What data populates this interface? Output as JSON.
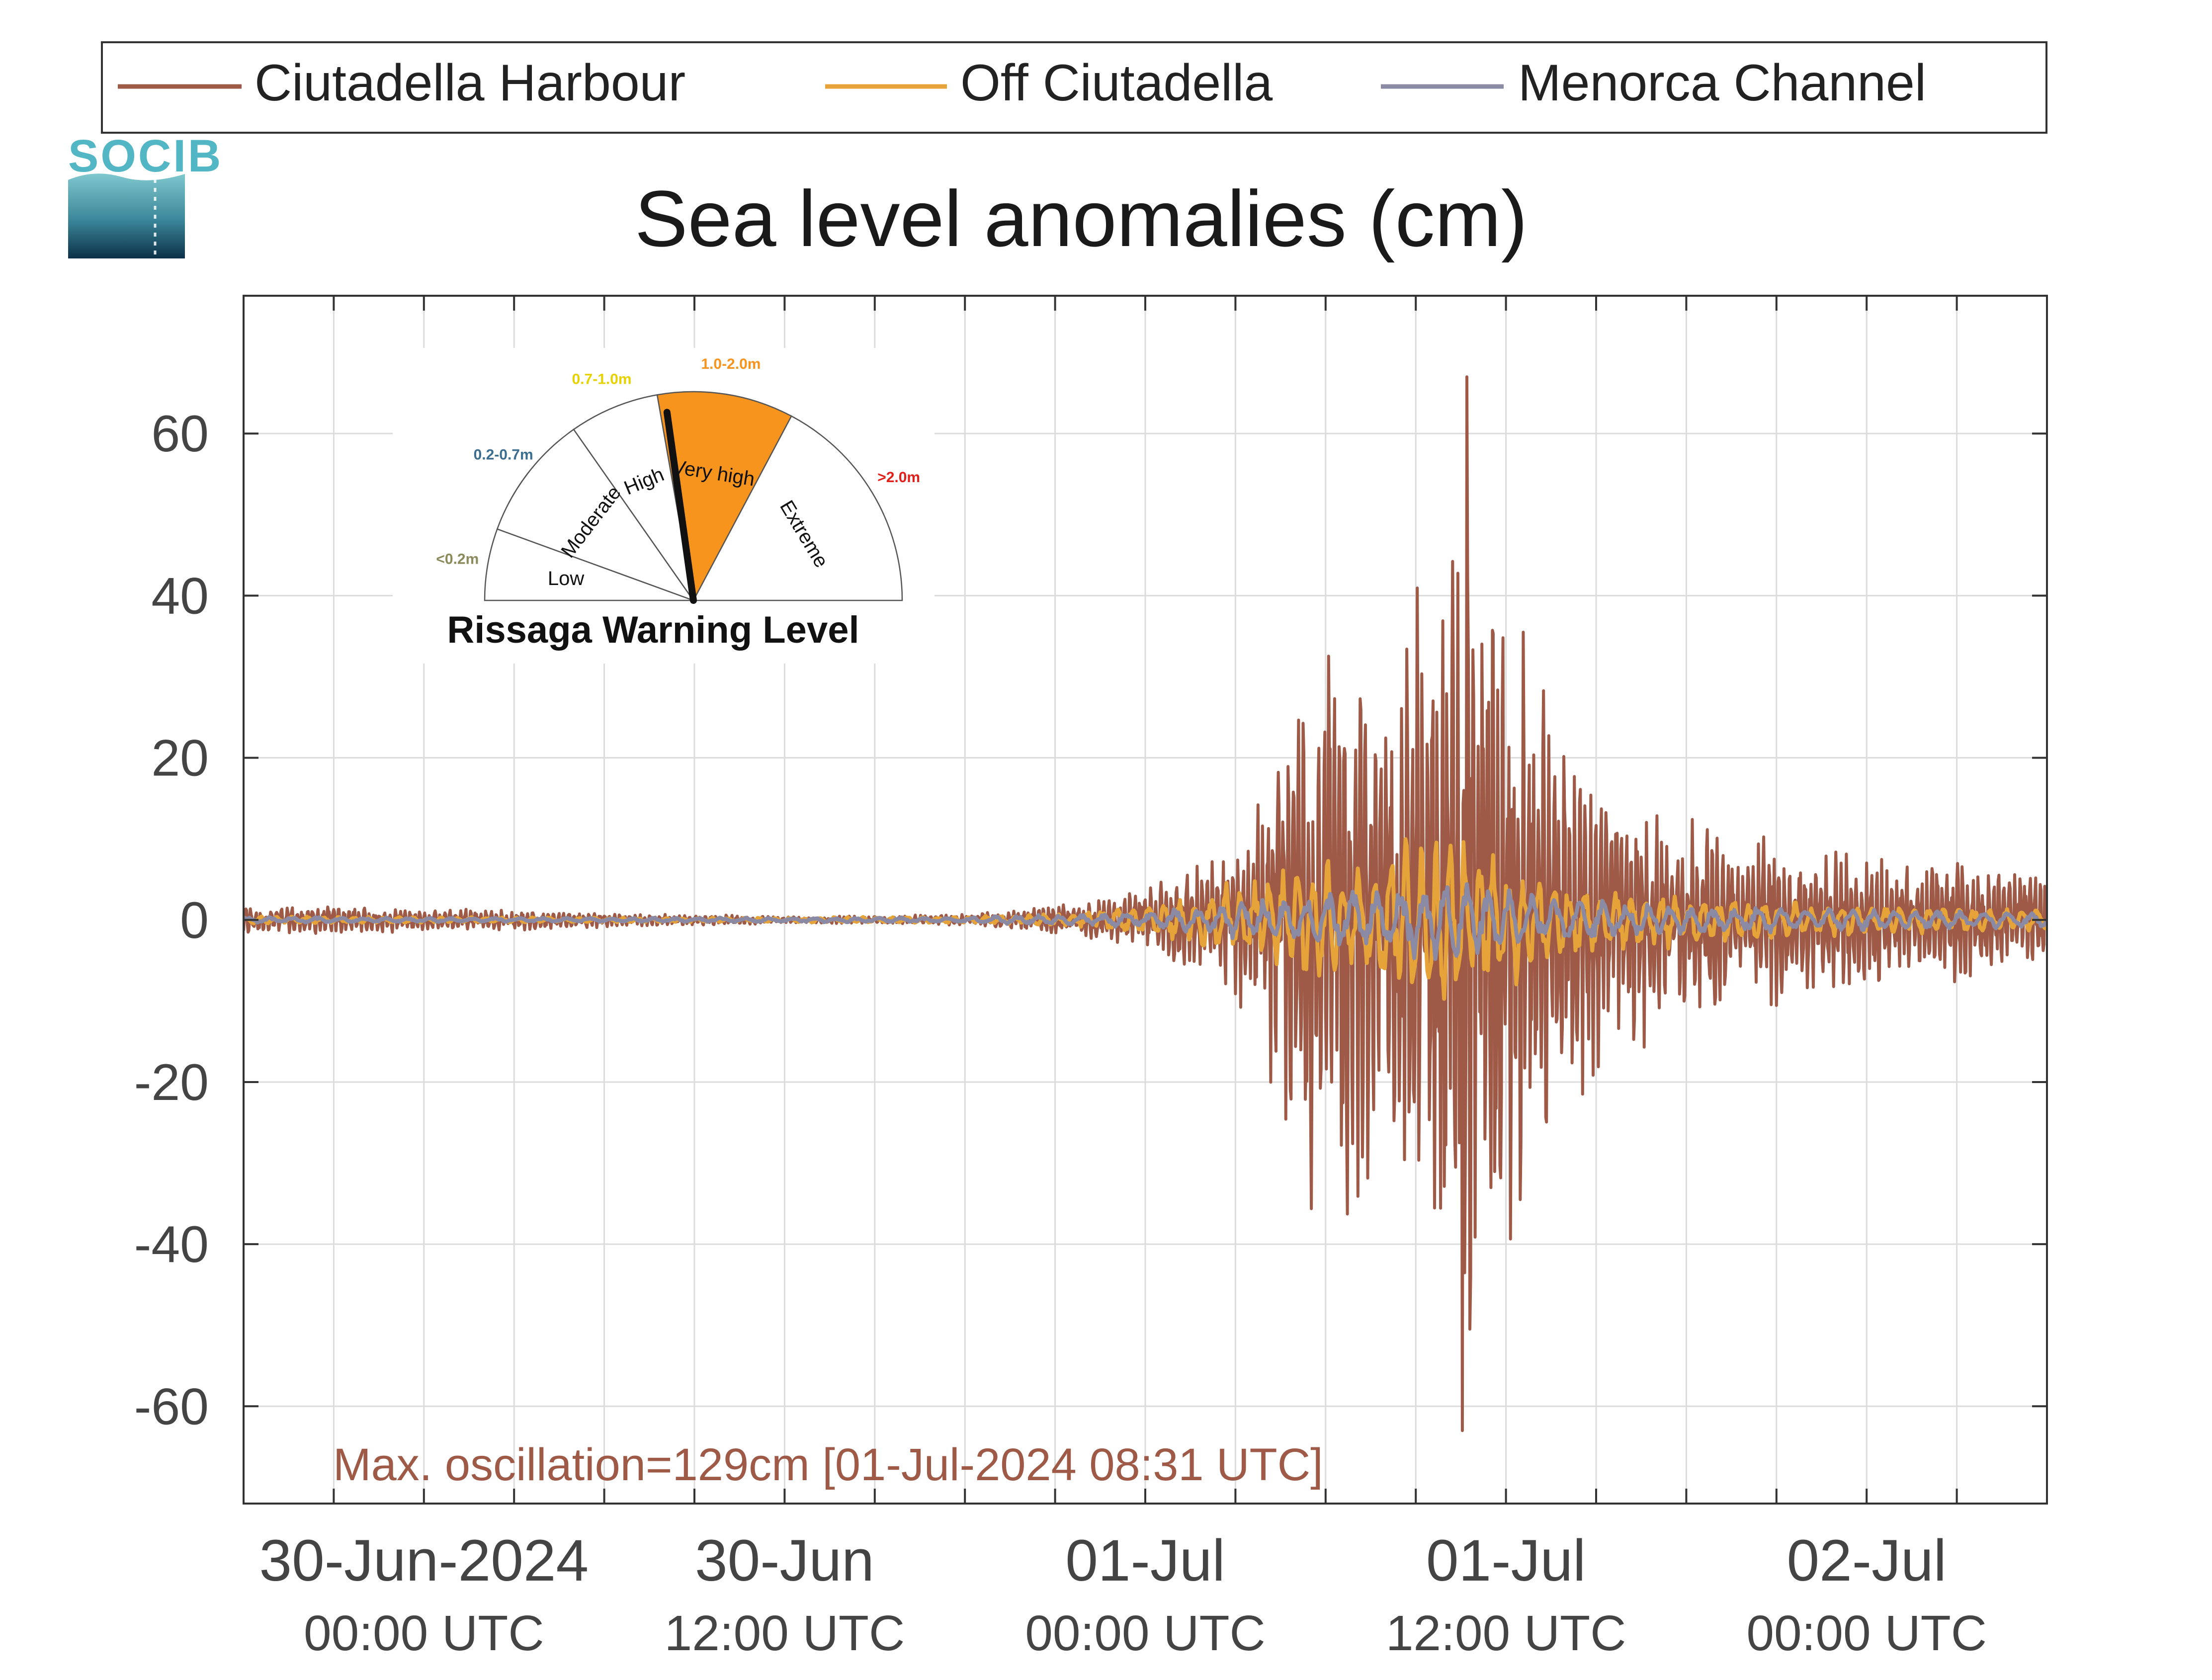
{
  "logo": {
    "text": "SOCIB"
  },
  "colors": {
    "harbour": "#9E5A47",
    "off": "#E5A33A",
    "channel": "#8A8AA5",
    "grid": "#dcdcdc",
    "axis": "#333333",
    "gauge_orange": "#F7941D",
    "gauge_pointer": "#111111"
  },
  "warning_gauge": {
    "title": "Rissaga Warning Level",
    "level": "Very high",
    "sectors": [
      {
        "name": "Low",
        "range": "<0.2m",
        "range_color": "#8A8A5C"
      },
      {
        "name": "Moderate",
        "range": "0.2-0.7m",
        "range_color": "#3C6E8F"
      },
      {
        "name": "High",
        "range": "0.7-1.0m",
        "range_color": "#E6D200"
      },
      {
        "name": "Very high",
        "range": "1.0-2.0m",
        "range_color": "#F7941D"
      },
      {
        "name": "Extreme",
        "range": ">2.0m",
        "range_color": "#E0201B"
      }
    ]
  },
  "chart_data": {
    "type": "line",
    "title": "Sea level anomalies (cm)",
    "xlabel": "",
    "ylabel": "",
    "ylim": [
      -72,
      77
    ],
    "yticks": [
      -60,
      -40,
      -20,
      0,
      20,
      40,
      60
    ],
    "xlim_hours": [
      -6,
      54
    ],
    "x_ticks": [
      {
        "hour": 0,
        "label": "30-Jun-2024",
        "sublabel": "00:00 UTC"
      },
      {
        "hour": 12,
        "label": "30-Jun",
        "sublabel": "12:00 UTC"
      },
      {
        "hour": 24,
        "label": "01-Jul",
        "sublabel": "00:00 UTC"
      },
      {
        "hour": 36,
        "label": "01-Jul",
        "sublabel": "12:00 UTC"
      },
      {
        "hour": 48,
        "label": "02-Jul",
        "sublabel": "00:00 UTC"
      }
    ],
    "grid": true,
    "legend_position": "top",
    "annotation": "Max. oscillation=129cm [01-Jul-2024 08:31 UTC]",
    "series": [
      {
        "name": "Ciutadella Harbour",
        "envelope_hours": [
          -6,
          -3,
          0,
          3,
          6,
          9,
          12,
          15,
          18,
          21,
          23,
          25,
          27,
          28,
          29,
          30,
          31,
          32,
          33,
          34,
          35,
          36,
          37,
          38,
          39,
          40,
          42,
          44,
          46,
          48,
          50,
          52,
          54
        ],
        "envelope_cm": [
          2,
          2,
          1.5,
          1.5,
          1,
          0.8,
          0.5,
          0.5,
          0.8,
          2,
          3,
          6,
          10,
          18,
          32,
          42,
          44,
          30,
          48,
          50,
          64,
          46,
          38,
          28,
          22,
          18,
          14,
          12,
          11,
          10,
          9,
          8,
          6
        ],
        "max": 67,
        "min": -63
      },
      {
        "name": "Off Ciutadella",
        "envelope_hours": [
          -6,
          0,
          6,
          12,
          18,
          21,
          24,
          26,
          28,
          30,
          32,
          34,
          35,
          36,
          38,
          40,
          44,
          48,
          54
        ],
        "envelope_cm": [
          0.5,
          0.4,
          0.3,
          0.3,
          0.5,
          0.8,
          2,
          4,
          7,
          9,
          11,
          12,
          12,
          9,
          6,
          4,
          3,
          2,
          1.5
        ]
      },
      {
        "name": "Menorca Channel",
        "envelope_hours": [
          -6,
          0,
          12,
          18,
          24,
          26,
          28,
          30,
          32,
          34,
          36,
          38,
          42,
          48,
          54
        ],
        "envelope_cm": [
          0.4,
          0.3,
          0.3,
          0.4,
          1,
          2,
          3,
          4,
          5,
          6,
          4,
          3,
          2,
          1.5,
          1
        ]
      }
    ]
  }
}
